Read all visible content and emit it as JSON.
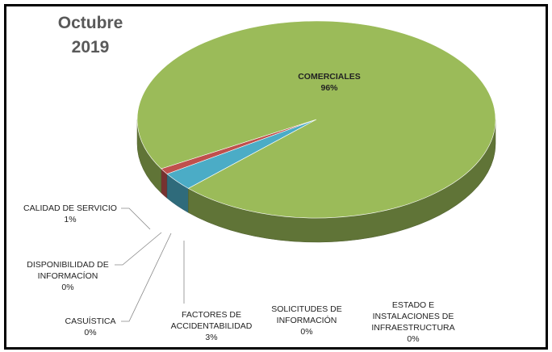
{
  "chart_data": {
    "type": "pie3d",
    "title": "Octubre 2019",
    "categories": [
      "CALIDAD DE SERVICIO",
      "DISPONIBILIDAD DE INFORMACÍON",
      "CASUÍSTICA",
      "FACTORES DE ACCIDENTABILIDAD",
      "SOLICITUDES DE INFORMACIÓN",
      "ESTADO E INSTALACIONES DE INFRAESTRUCTURA",
      "COMERCIALES"
    ],
    "values": [
      1,
      0,
      0,
      3,
      0,
      0,
      96
    ],
    "value_labels": [
      "1%",
      "0%",
      "0%",
      "3%",
      "0%",
      "0%",
      "96%"
    ],
    "colors": [
      "#c0504d",
      "#f79646",
      "#8c8c8c",
      "#4bacc6",
      "#8064a2",
      "#4f81bd",
      "#9bbb59"
    ]
  }
}
